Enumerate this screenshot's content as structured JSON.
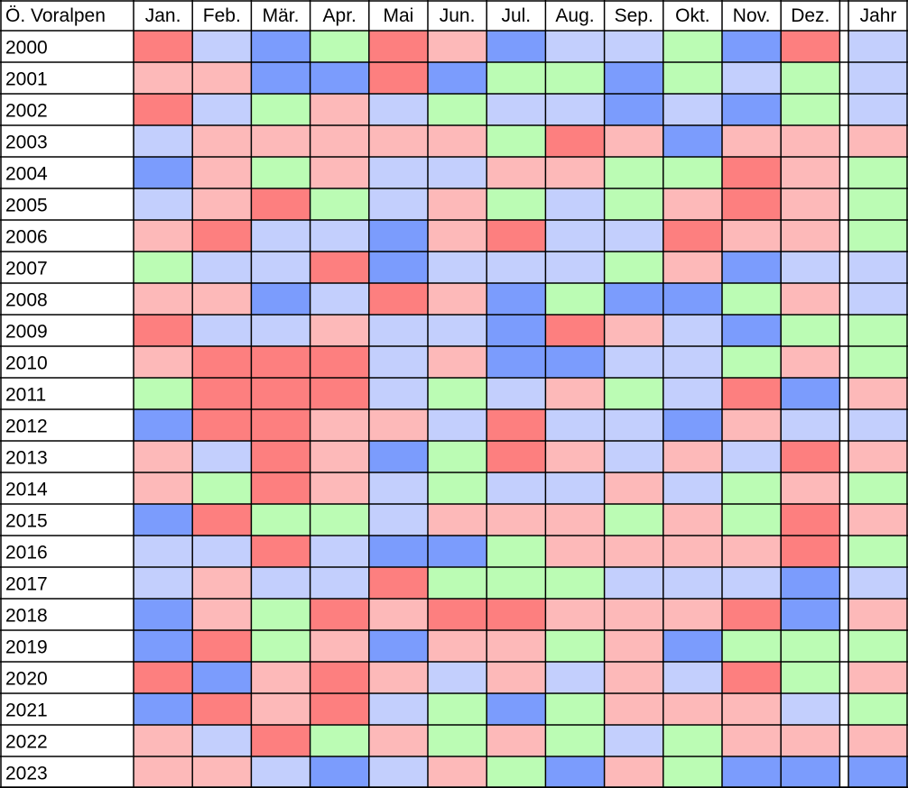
{
  "chart_data": {
    "type": "heatmap",
    "title": "Ö. Voralpen",
    "columns": [
      "Jan.",
      "Feb.",
      "Mär.",
      "Apr.",
      "Mai",
      "Jun.",
      "Jul.",
      "Aug.",
      "Sep.",
      "Okt.",
      "Nov.",
      "Dez."
    ],
    "summary_column": "Jahr",
    "rows": [
      "2000",
      "2001",
      "2002",
      "2003",
      "2004",
      "2005",
      "2006",
      "2007",
      "2008",
      "2009",
      "2010",
      "2011",
      "2012",
      "2013",
      "2014",
      "2015",
      "2016",
      "2017",
      "2018",
      "2019",
      "2020",
      "2021",
      "2022",
      "2023"
    ],
    "color_scale": {
      "B": "#7b9cfd",
      "b": "#c3cffd",
      "g": "#bbfcb4",
      "r": "#fdb9b9",
      "R": "#fd7f7f"
    },
    "cells": [
      [
        "R",
        "b",
        "B",
        "g",
        "R",
        "r",
        "B",
        "b",
        "b",
        "g",
        "B",
        "R",
        "b"
      ],
      [
        "r",
        "r",
        "B",
        "B",
        "R",
        "B",
        "g",
        "g",
        "B",
        "g",
        "b",
        "g",
        "b"
      ],
      [
        "R",
        "b",
        "g",
        "r",
        "b",
        "g",
        "b",
        "b",
        "B",
        "b",
        "B",
        "g",
        "b"
      ],
      [
        "b",
        "r",
        "r",
        "r",
        "r",
        "r",
        "g",
        "R",
        "r",
        "B",
        "r",
        "r",
        "r"
      ],
      [
        "B",
        "r",
        "g",
        "r",
        "b",
        "b",
        "r",
        "r",
        "g",
        "g",
        "R",
        "r",
        "g"
      ],
      [
        "b",
        "r",
        "R",
        "g",
        "b",
        "r",
        "g",
        "b",
        "g",
        "r",
        "R",
        "r",
        "g"
      ],
      [
        "r",
        "R",
        "b",
        "b",
        "B",
        "r",
        "R",
        "b",
        "b",
        "R",
        "r",
        "r",
        "g"
      ],
      [
        "g",
        "b",
        "b",
        "R",
        "B",
        "b",
        "b",
        "b",
        "g",
        "r",
        "B",
        "b",
        "b"
      ],
      [
        "r",
        "r",
        "B",
        "b",
        "R",
        "r",
        "B",
        "g",
        "B",
        "B",
        "g",
        "r",
        "b"
      ],
      [
        "R",
        "b",
        "b",
        "r",
        "b",
        "b",
        "B",
        "R",
        "r",
        "b",
        "B",
        "g",
        "g"
      ],
      [
        "r",
        "R",
        "R",
        "R",
        "b",
        "r",
        "B",
        "B",
        "b",
        "b",
        "g",
        "r",
        "g"
      ],
      [
        "g",
        "R",
        "R",
        "R",
        "b",
        "g",
        "b",
        "r",
        "g",
        "b",
        "R",
        "B",
        "r"
      ],
      [
        "B",
        "R",
        "R",
        "r",
        "r",
        "b",
        "R",
        "b",
        "b",
        "B",
        "r",
        "b",
        "b"
      ],
      [
        "r",
        "b",
        "R",
        "r",
        "B",
        "g",
        "R",
        "r",
        "b",
        "r",
        "b",
        "R",
        "r"
      ],
      [
        "r",
        "g",
        "R",
        "r",
        "b",
        "g",
        "b",
        "b",
        "r",
        "b",
        "g",
        "r",
        "g"
      ],
      [
        "B",
        "R",
        "g",
        "g",
        "b",
        "r",
        "r",
        "r",
        "g",
        "r",
        "g",
        "R",
        "r"
      ],
      [
        "b",
        "b",
        "R",
        "b",
        "B",
        "B",
        "g",
        "r",
        "r",
        "r",
        "r",
        "R",
        "g"
      ],
      [
        "b",
        "r",
        "b",
        "b",
        "R",
        "g",
        "g",
        "g",
        "b",
        "b",
        "b",
        "B",
        "b"
      ],
      [
        "B",
        "r",
        "g",
        "R",
        "r",
        "R",
        "R",
        "r",
        "r",
        "r",
        "R",
        "B",
        "r"
      ],
      [
        "B",
        "R",
        "g",
        "r",
        "B",
        "r",
        "r",
        "g",
        "r",
        "B",
        "g",
        "g",
        "g"
      ],
      [
        "R",
        "B",
        "r",
        "R",
        "r",
        "b",
        "r",
        "b",
        "r",
        "b",
        "R",
        "g",
        "r"
      ],
      [
        "B",
        "R",
        "r",
        "R",
        "b",
        "g",
        "B",
        "g",
        "r",
        "r",
        "r",
        "b",
        "g"
      ],
      [
        "r",
        "b",
        "R",
        "g",
        "r",
        "g",
        "r",
        "g",
        "b",
        "g",
        "r",
        "r",
        "r"
      ],
      [
        "r",
        "r",
        "b",
        "B",
        "b",
        "r",
        "g",
        "B",
        "r",
        "g",
        "B",
        "B",
        "B"
      ]
    ]
  }
}
